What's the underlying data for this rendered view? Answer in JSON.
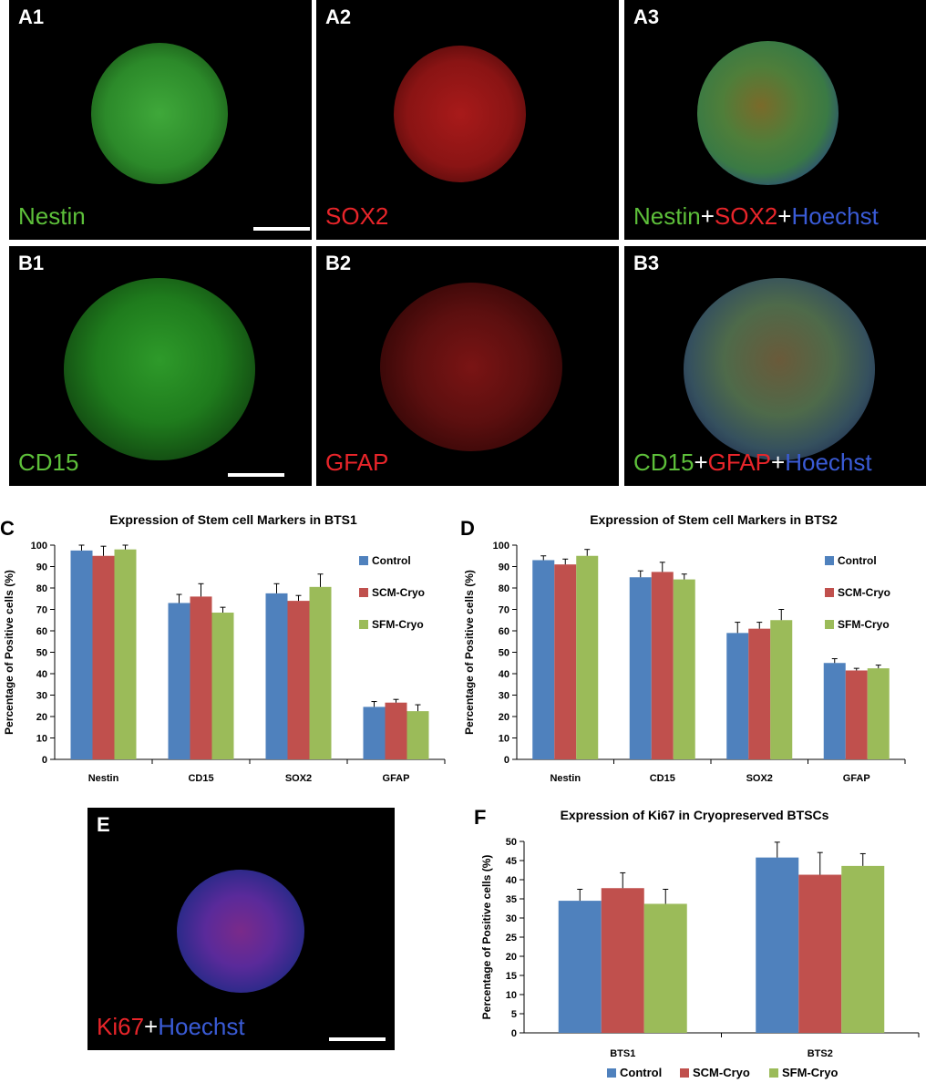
{
  "panels": {
    "A1": {
      "tag": "A1",
      "label": "Nestin"
    },
    "A2": {
      "tag": "A2",
      "label": "SOX2"
    },
    "A3": {
      "tag": "A3",
      "label_parts": [
        "Nestin",
        "+",
        "SOX2",
        "+",
        "Hoechst"
      ]
    },
    "B1": {
      "tag": "B1",
      "label": "CD15"
    },
    "B2": {
      "tag": "B2",
      "label": "GFAP"
    },
    "B3": {
      "tag": "B3",
      "label_parts": [
        "CD15",
        "+",
        "GFAP",
        "+",
        "Hoechst"
      ]
    },
    "E": {
      "tag": "E",
      "label_parts": [
        "Ki67",
        "+",
        "Hoechst"
      ]
    }
  },
  "colors": {
    "control": "#4f81bd",
    "scm": "#c0504d",
    "sfm": "#9bbb59",
    "axis": "#000000"
  },
  "chart_data": [
    {
      "id": "C",
      "panel_label": "C",
      "type": "bar",
      "title": "Expression of Stem cell Markers in BTS1",
      "ylabel": "Percentage of Positive cells (%)",
      "xlabel": "",
      "ylim": [
        0,
        100
      ],
      "yticks": [
        "0",
        "10",
        "20",
        "30",
        "40",
        "50",
        "60",
        "70",
        "80",
        "90",
        "100"
      ],
      "categories": [
        "Nestin",
        "CD15",
        "SOX2",
        "GFAP"
      ],
      "legend": "right",
      "series": [
        {
          "name": "Control",
          "values": [
            97.5,
            73,
            77.5,
            24.5
          ],
          "errors": [
            2.5,
            4,
            4.5,
            2.5
          ]
        },
        {
          "name": "SCM-Cryo",
          "values": [
            95,
            76,
            74,
            26.5
          ],
          "errors": [
            4.5,
            6,
            2.5,
            1.5
          ]
        },
        {
          "name": "SFM-Cryo",
          "values": [
            98,
            68.5,
            80.5,
            22.5
          ],
          "errors": [
            2,
            2.5,
            6,
            3
          ]
        }
      ]
    },
    {
      "id": "D",
      "panel_label": "D",
      "type": "bar",
      "title": "Expression of Stem cell Markers in BTS2",
      "ylabel": "Percentage of Positive cells (%)",
      "xlabel": "",
      "ylim": [
        0,
        100
      ],
      "yticks": [
        "0",
        "10",
        "20",
        "30",
        "40",
        "50",
        "60",
        "70",
        "80",
        "90",
        "100"
      ],
      "categories": [
        "Nestin",
        "CD15",
        "SOX2",
        "GFAP"
      ],
      "legend": "right",
      "series": [
        {
          "name": "Control",
          "values": [
            93,
            85,
            59,
            45
          ],
          "errors": [
            2,
            3,
            5,
            2
          ]
        },
        {
          "name": "SCM-Cryo",
          "values": [
            91,
            87.5,
            61,
            41.5
          ],
          "errors": [
            2.5,
            4.5,
            3,
            1
          ]
        },
        {
          "name": "SFM-Cryo",
          "values": [
            95,
            84,
            65,
            42.5
          ],
          "errors": [
            3,
            2.5,
            5,
            1.5
          ]
        }
      ]
    },
    {
      "id": "F",
      "panel_label": "F",
      "type": "bar",
      "title": "Expression of Ki67 in Cryopreserved BTSCs",
      "ylabel": "Percentage of Positive cells (%)",
      "xlabel": "",
      "ylim": [
        0,
        50
      ],
      "yticks": [
        "0",
        "5",
        "10",
        "15",
        "20",
        "25",
        "30",
        "35",
        "40",
        "45",
        "50"
      ],
      "categories": [
        "BTS1",
        "BTS2"
      ],
      "legend": "bottom",
      "series": [
        {
          "name": "Control",
          "values": [
            34.5,
            45.8
          ],
          "errors": [
            3,
            4
          ]
        },
        {
          "name": "SCM-Cryo",
          "values": [
            37.8,
            41.3
          ],
          "errors": [
            4,
            5.8
          ]
        },
        {
          "name": "SFM-Cryo",
          "values": [
            33.7,
            43.6
          ],
          "errors": [
            3.8,
            3.2
          ]
        }
      ]
    }
  ]
}
